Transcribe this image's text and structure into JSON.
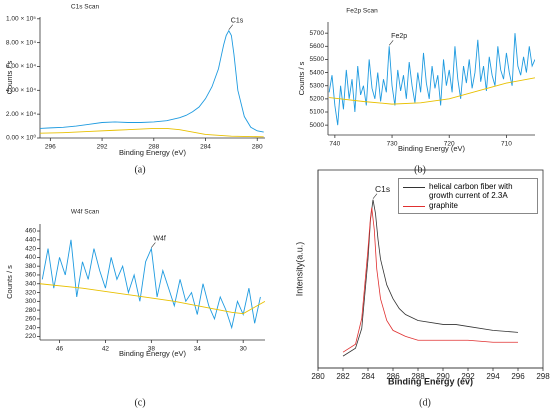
{
  "chart_data": [
    {
      "type": "line",
      "title": "C1s Scan",
      "caption": "(a)",
      "xlabel": "Binding Energy (eV)",
      "ylabel": "Counts / s",
      "xlim": [
        296.8,
        279.4
      ],
      "ylim": [
        0,
        101500
      ],
      "xticks": [
        296,
        292,
        288,
        284,
        280
      ],
      "yticks": [
        {
          "value": 0,
          "label": "0.00 × 10⁰"
        },
        {
          "value": 20000,
          "label": "2.00 × 10⁴"
        },
        {
          "value": 40000,
          "label": "4.00 × 10⁴"
        },
        {
          "value": 60000,
          "label": "6.00 × 10⁴"
        },
        {
          "value": 80000,
          "label": "8.00 × 10⁴"
        },
        {
          "value": 100000,
          "label": "1.00 × 10⁵"
        }
      ],
      "annotations": [
        {
          "text": "C1s",
          "x": 282.2,
          "y": 90000
        }
      ],
      "series": [
        {
          "color": "#1f9be0",
          "x": [
            296.8,
            296,
            295,
            294,
            293,
            292,
            291,
            290,
            289,
            288,
            287,
            286,
            285.5,
            285,
            284.5,
            284,
            283.5,
            283,
            282.8,
            282.6,
            282.4,
            282.2,
            282,
            281.8,
            281.5,
            281,
            280.5,
            280,
            279.5
          ],
          "values": [
            8000,
            8500,
            9000,
            10000,
            11500,
            13000,
            13500,
            13000,
            13000,
            13500,
            14500,
            17000,
            19000,
            22000,
            26000,
            33000,
            43000,
            58000,
            68000,
            78000,
            86000,
            90000,
            86000,
            70000,
            40000,
            18000,
            9000,
            6000,
            5000
          ]
        },
        {
          "color": "#e8c000",
          "x": [
            296.8,
            295,
            293,
            291,
            289,
            288,
            287,
            286,
            285,
            284,
            282,
            279.5
          ],
          "values": [
            4000,
            4500,
            5500,
            6500,
            7500,
            8000,
            8000,
            7000,
            5000,
            3000,
            1500,
            1000
          ]
        }
      ]
    },
    {
      "type": "line",
      "title": "Fe2p Scan",
      "caption": "(b)",
      "xlabel": "Binding Energy (eV)",
      "ylabel": "Counts / s",
      "xlim": [
        741.2,
        705
      ],
      "ylim": [
        4925,
        5785
      ],
      "xticks": [
        740,
        730,
        720,
        710
      ],
      "yticks": [
        5000,
        5100,
        5200,
        5300,
        5400,
        5500,
        5600,
        5700
      ],
      "annotations": [
        {
          "text": "Fe2p",
          "x": 730.5,
          "y": 5600
        }
      ],
      "series": [
        {
          "color": "#1f9be0",
          "x": [
            741,
            740.5,
            740,
            739.5,
            739,
            738.5,
            738,
            737.5,
            737,
            736.5,
            736,
            735.5,
            735,
            734.5,
            734,
            733.5,
            733,
            732.5,
            732,
            731.5,
            731,
            730.5,
            730,
            729.5,
            729,
            728.5,
            728,
            727.5,
            727,
            726.5,
            726,
            725.5,
            725,
            724.5,
            724,
            723.5,
            723,
            722.5,
            722,
            721.5,
            721,
            720.5,
            720,
            719.5,
            719,
            718.5,
            718,
            717.5,
            717,
            716.5,
            716,
            715.5,
            715,
            714.5,
            714,
            713.5,
            713,
            712.5,
            712,
            711.5,
            711,
            710.5,
            710,
            709.5,
            709,
            708.5,
            708,
            707.5,
            707,
            706.5,
            706,
            705.5,
            705
          ],
          "values": [
            5250,
            5380,
            5150,
            5000,
            5300,
            5120,
            5420,
            5200,
            5350,
            5100,
            5450,
            5230,
            5300,
            5150,
            5500,
            5280,
            5200,
            5400,
            5180,
            5350,
            5250,
            5600,
            5300,
            5150,
            5420,
            5260,
            5380,
            5200,
            5480,
            5300,
            5170,
            5400,
            5250,
            5550,
            5320,
            5200,
            5450,
            5280,
            5380,
            5150,
            5500,
            5300,
            5420,
            5250,
            5600,
            5350,
            5200,
            5450,
            5320,
            5500,
            5280,
            5400,
            5650,
            5330,
            5450,
            5260,
            5520,
            5380,
            5300,
            5600,
            5420,
            5350,
            5550,
            5400,
            5300,
            5700,
            5450,
            5380,
            5520,
            5400,
            5600,
            5450,
            5500
          ]
        },
        {
          "color": "#e8c000",
          "x": [
            741,
            735,
            730,
            725,
            720,
            715,
            710,
            705
          ],
          "values": [
            5210,
            5180,
            5160,
            5170,
            5200,
            5260,
            5320,
            5360
          ]
        }
      ]
    },
    {
      "type": "line",
      "title": "W4f Scan",
      "caption": "(c)",
      "xlabel": "Binding Energy (eV)",
      "ylabel": "Counts / s",
      "xlim": [
        47.7,
        28.1
      ],
      "ylim": [
        212,
        476
      ],
      "xticks": [
        46,
        42,
        38,
        34,
        30
      ],
      "yticks": [
        220,
        240,
        260,
        280,
        300,
        320,
        340,
        360,
        380,
        400,
        420,
        440,
        460
      ],
      "annotations": [
        {
          "text": "W4f",
          "x": 38,
          "y": 420
        }
      ],
      "series": [
        {
          "color": "#1f9be0",
          "x": [
            47.5,
            47,
            46.5,
            46,
            45.5,
            45,
            44.5,
            44,
            43.5,
            43,
            42.5,
            42,
            41.5,
            41,
            40.5,
            40,
            39.5,
            39,
            38.5,
            38,
            37.5,
            37,
            36.5,
            36,
            35.5,
            35,
            34.5,
            34,
            33.5,
            33,
            32.5,
            32,
            31.5,
            31,
            30.5,
            30,
            29.5,
            29,
            28.5
          ],
          "values": [
            350,
            420,
            330,
            400,
            360,
            440,
            310,
            390,
            350,
            420,
            370,
            330,
            400,
            350,
            380,
            320,
            360,
            300,
            390,
            420,
            310,
            370,
            330,
            290,
            350,
            300,
            320,
            270,
            340,
            290,
            260,
            310,
            280,
            240,
            300,
            270,
            330,
            250,
            310
          ]
        },
        {
          "color": "#e8c000",
          "x": [
            47.7,
            44,
            40,
            36,
            33,
            31,
            30,
            28.1
          ],
          "values": [
            340,
            330,
            315,
            300,
            285,
            275,
            272,
            300
          ]
        }
      ]
    },
    {
      "type": "line",
      "caption": "(d)",
      "xlabel": "Binding Energy (ev)",
      "ylabel": "Intensity(a.u.)",
      "frame": true,
      "legend": "upper right",
      "xlim": [
        280,
        298
      ],
      "ylim": [
        0,
        100
      ],
      "xticks": [
        280,
        282,
        284,
        286,
        288,
        290,
        292,
        294,
        296,
        298
      ],
      "annotations": [
        {
          "text": "C1s",
          "x": 284.4,
          "y": 85
        }
      ],
      "series": [
        {
          "name": "helical carbon fiber with growth current of 2.3A",
          "color": "#333333",
          "x": [
            282,
            283,
            283.5,
            284,
            284.2,
            284.4,
            284.6,
            284.8,
            285,
            285.5,
            286,
            286.5,
            287,
            288,
            290,
            291,
            292,
            294,
            296
          ],
          "values": [
            6,
            10,
            20,
            55,
            75,
            85,
            78,
            65,
            55,
            42,
            35,
            30,
            27,
            24,
            22,
            22,
            21,
            19,
            18
          ]
        },
        {
          "name": "graphite",
          "color": "#e03030",
          "x": [
            282,
            283,
            283.5,
            284,
            284.2,
            284.3,
            284.5,
            284.7,
            285,
            285.5,
            286,
            287,
            288,
            290,
            292,
            294,
            296
          ],
          "values": [
            8,
            12,
            25,
            60,
            76,
            81,
            70,
            50,
            35,
            24,
            19,
            16,
            14,
            14,
            14,
            13,
            13
          ]
        }
      ]
    }
  ]
}
